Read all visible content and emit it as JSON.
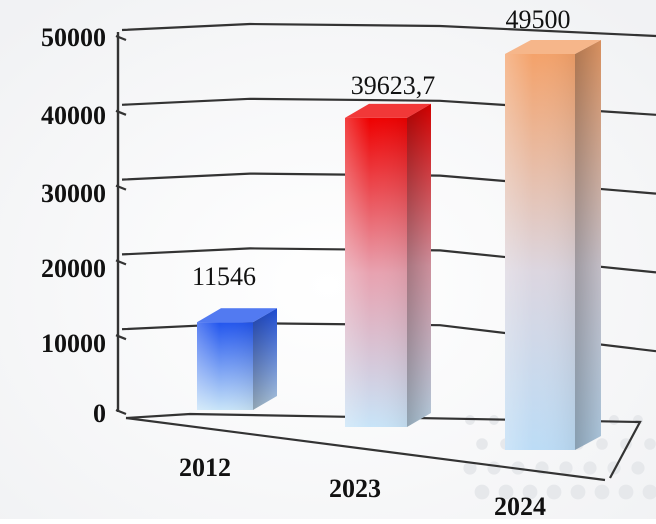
{
  "chart_data": {
    "type": "bar",
    "style": "3d-column",
    "categories": [
      "2012",
      "2023",
      "2024"
    ],
    "values": [
      11546,
      39623.7,
      49500
    ],
    "data_labels": [
      "11546",
      "39623,7",
      "49500"
    ],
    "y_ticks": [
      "0",
      "10000",
      "20000",
      "30000",
      "40000",
      "50000"
    ],
    "ylim": [
      0,
      50000
    ],
    "grid": true,
    "legend": "none",
    "colors": {
      "bar_2012_top": "#2255ee",
      "bar_2012_bottom": "#c8e4f8",
      "bar_2023_top": "#ee0000",
      "bar_2023_bottom": "#c8e4f8",
      "bar_2024_top": "#f4a26a",
      "bar_2024_bottom": "#bcdcf6"
    }
  }
}
